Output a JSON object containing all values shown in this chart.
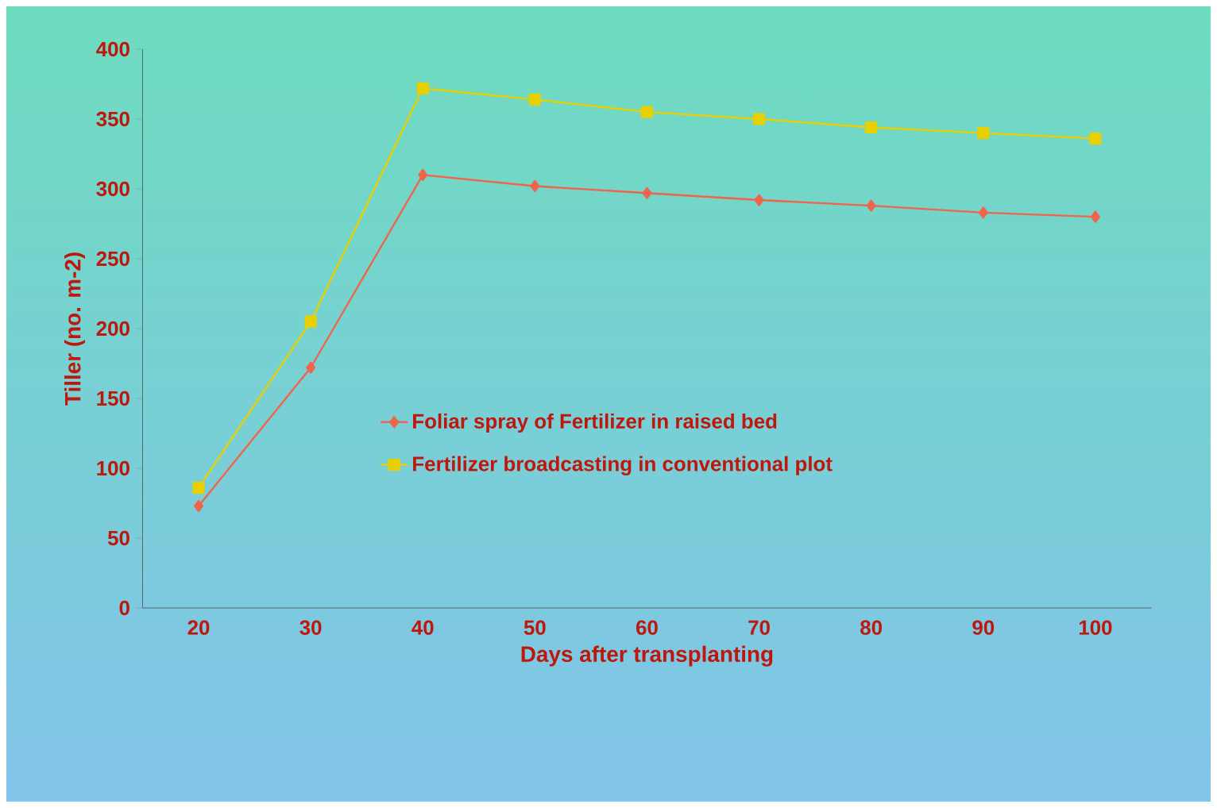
{
  "chart_data": {
    "type": "line",
    "xlabel": "Days after transplanting",
    "ylabel": "Tiller (no. m-2)",
    "categories": [
      "20",
      "30",
      "40",
      "50",
      "60",
      "70",
      "80",
      "90",
      "100"
    ],
    "ylim": [
      0,
      400
    ],
    "yticks": [
      0,
      50,
      100,
      150,
      200,
      250,
      300,
      350,
      400
    ],
    "grid": false,
    "legend": "center right",
    "series": [
      {
        "name": "Foliar spray of Fertilizer in raised bed",
        "color": "#f0644c",
        "marker": "diamond",
        "values": [
          73,
          172,
          310,
          302,
          297,
          292,
          288,
          283,
          280
        ]
      },
      {
        "name": "Fertilizer broadcasting in conventional plot",
        "color": "#e8d000",
        "marker": "square",
        "values": [
          86,
          205,
          372,
          364,
          355,
          350,
          344,
          340,
          336
        ]
      }
    ]
  }
}
